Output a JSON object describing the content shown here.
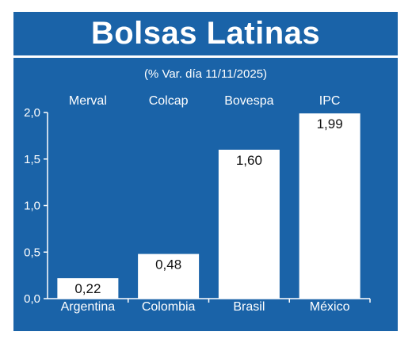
{
  "title": "Bolsas Latinas",
  "subtitle": "(% Var. día 11/11/2025)",
  "colors": {
    "background": "#1a63a8",
    "bar": "#ffffff",
    "text": "#ffffff",
    "label_text": "#111111"
  },
  "chart_data": {
    "type": "bar",
    "title": "Bolsas Latinas",
    "subtitle": "(% Var. día 11/11/2025)",
    "top_labels": [
      "Merval",
      "Colcap",
      "Bovespa",
      "IPC"
    ],
    "categories": [
      "Argentina",
      "Colombia",
      "Brasil",
      "México"
    ],
    "values": [
      0.22,
      0.48,
      1.6,
      1.99
    ],
    "value_labels": [
      "0,22",
      "0,48",
      "1,60",
      "1,99"
    ],
    "ylim": [
      0,
      2.0
    ],
    "yticks": [
      0,
      0.5,
      1.0,
      1.5,
      2.0
    ],
    "ytick_labels": [
      "0,0",
      "0,5",
      "1,0",
      "1,5",
      "2,0"
    ],
    "grid": false,
    "legend": "none"
  }
}
